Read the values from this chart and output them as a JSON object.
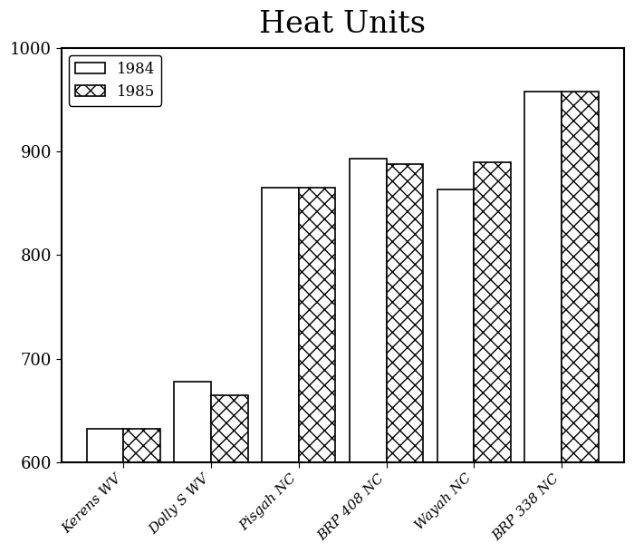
{
  "title": "Heat Units",
  "categories": [
    "Kerens WV",
    "Dolly S WV",
    "Pisgah NC",
    "BRP 408 NC",
    "Wayah NC",
    "BRP 338 NC"
  ],
  "values_1984": [
    632,
    678,
    865,
    893,
    863,
    958
  ],
  "values_1985": [
    632,
    665,
    865,
    888,
    890,
    958
  ],
  "ylim": [
    600,
    1000
  ],
  "ybase": 600,
  "yticks": [
    600,
    700,
    800,
    900,
    1000
  ],
  "bar_width": 0.42,
  "color_1984": "#ffffff",
  "hatch_1984": "",
  "hatch_1985": "xx",
  "legend_labels": [
    "1984",
    "1985"
  ],
  "edgecolor": "#000000",
  "title_fontsize": 24,
  "tick_fontsize": 13,
  "label_fontsize": 11,
  "background_color": "#ffffff"
}
